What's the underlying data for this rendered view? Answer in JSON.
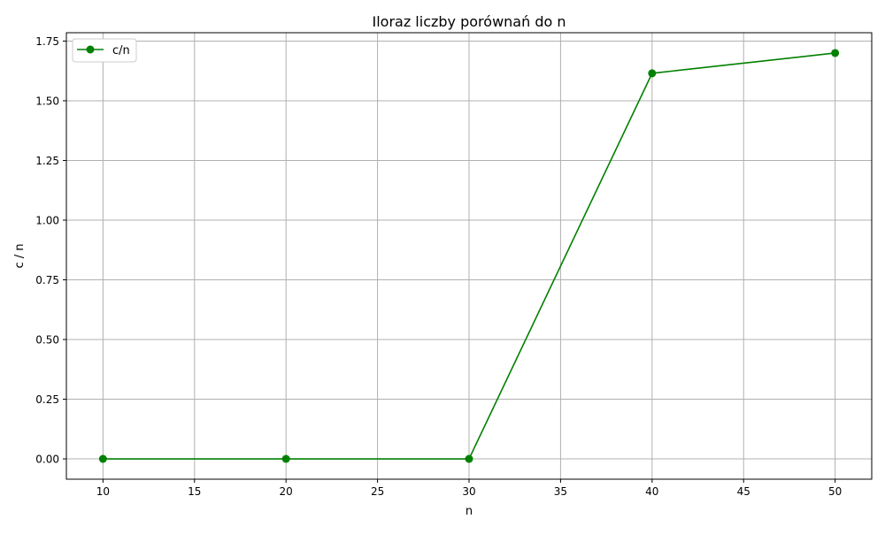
{
  "chart_data": {
    "type": "line",
    "title": "Iloraz liczby porównań do n",
    "xlabel": "n",
    "ylabel": "c / n",
    "xlim": [
      8,
      52
    ],
    "ylim": [
      -0.085,
      1.785
    ],
    "xticks": [
      10,
      15,
      20,
      25,
      30,
      35,
      40,
      45,
      50
    ],
    "xtick_labels": [
      "10",
      "15",
      "20",
      "25",
      "30",
      "35",
      "40",
      "45",
      "50"
    ],
    "yticks": [
      0.0,
      0.25,
      0.5,
      0.75,
      1.0,
      1.25,
      1.5,
      1.75
    ],
    "ytick_labels": [
      "0.00",
      "0.25",
      "0.50",
      "0.75",
      "1.00",
      "1.25",
      "1.50",
      "1.75"
    ],
    "grid": true,
    "legend_position": "upper-left",
    "series": [
      {
        "name": "c/n",
        "color": "#008000",
        "marker": "circle",
        "x": [
          10,
          20,
          30,
          40,
          50
        ],
        "y": [
          0.0,
          0.0,
          0.0,
          1.615,
          1.7
        ]
      }
    ]
  }
}
